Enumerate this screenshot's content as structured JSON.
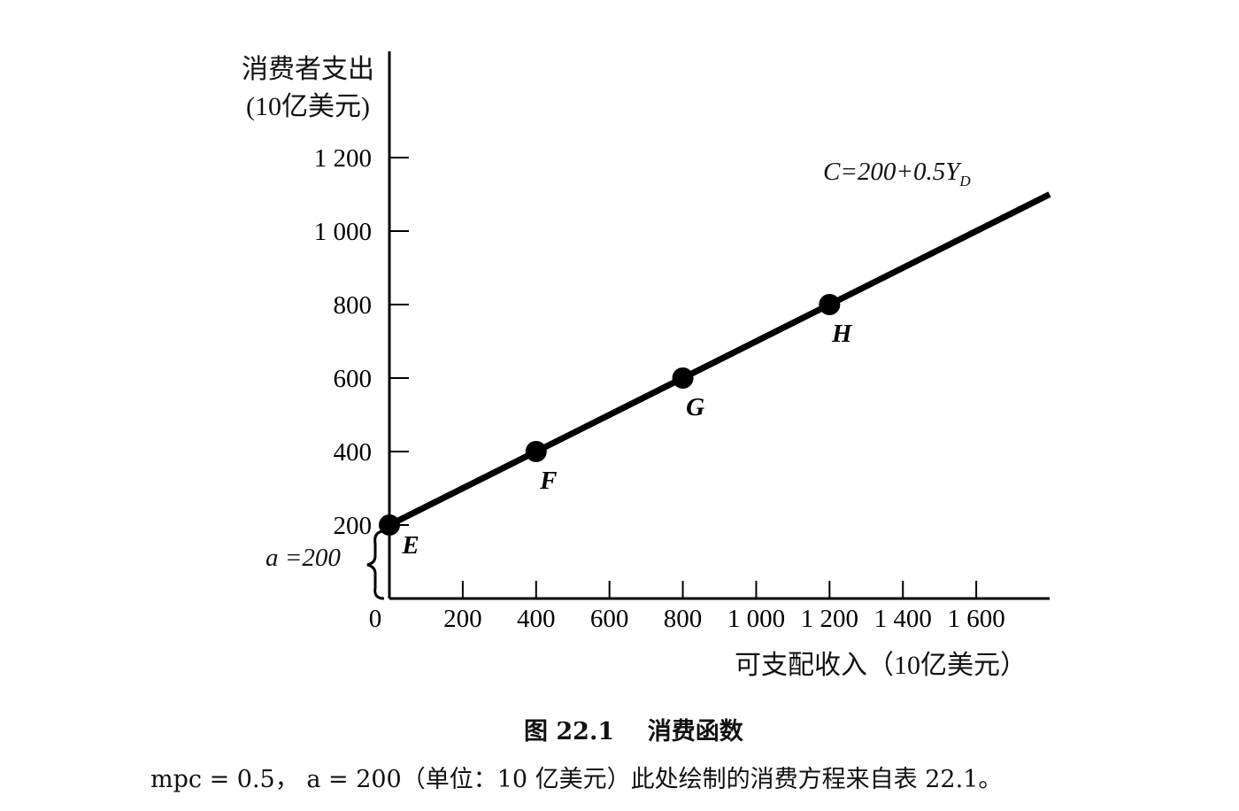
{
  "chart_data": {
    "type": "line",
    "ylabel_line1": "消费者支出",
    "ylabel_line2": "(10亿美元)",
    "xlabel": "可支配收入（10亿美元）",
    "x_ticks": [
      0,
      200,
      400,
      600,
      800,
      1000,
      1200,
      1400,
      1600
    ],
    "x_tick_labels": [
      "0",
      "200",
      "400",
      "600",
      "800",
      "1 000",
      "1 200",
      "1 400",
      "1 600"
    ],
    "y_ticks": [
      200,
      400,
      600,
      800,
      1000,
      1200
    ],
    "y_tick_labels": [
      "200",
      "400",
      "600",
      "800",
      "1 000",
      "1 200"
    ],
    "xlim": [
      0,
      1800
    ],
    "ylim": [
      0,
      1200
    ],
    "series": [
      {
        "equation_prefix": "C=200+0.5Y",
        "equation_sub": "D",
        "x": [
          0,
          1800
        ],
        "y": [
          200,
          1100
        ],
        "color": "#000000"
      }
    ],
    "points": [
      {
        "label": "E",
        "x": 0,
        "y": 200
      },
      {
        "label": "F",
        "x": 400,
        "y": 400
      },
      {
        "label": "G",
        "x": 800,
        "y": 600
      },
      {
        "label": "H",
        "x": 1200,
        "y": 800
      }
    ],
    "intercept_annotation": "a =200"
  },
  "caption": {
    "figure_label": "图 22.1",
    "figure_title": "消费函数",
    "note": "mpc = 0.5， a = 200（单位：10 亿美元）此处绘制的消费方程来自表 22.1。"
  }
}
